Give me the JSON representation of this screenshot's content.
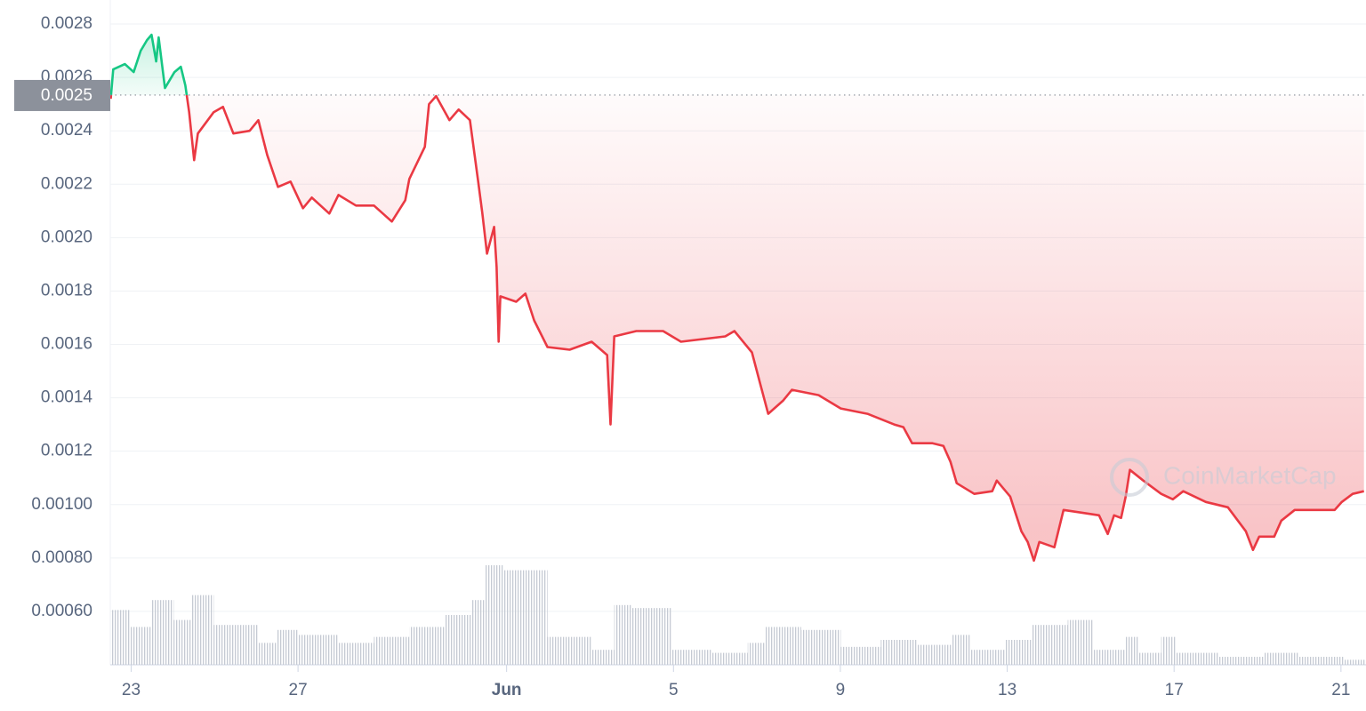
{
  "chart_data": {
    "type": "line",
    "watermark": "CoinMarketCap",
    "xlim": [
      -0.5,
      29.6
    ],
    "xticks": [
      {
        "value": 0,
        "label": "23"
      },
      {
        "value": 4,
        "label": "27"
      },
      {
        "value": 9,
        "label": "Jun"
      },
      {
        "value": 13,
        "label": "5"
      },
      {
        "value": 17,
        "label": "9"
      },
      {
        "value": 21,
        "label": "13"
      },
      {
        "value": 25,
        "label": "17"
      },
      {
        "value": 29,
        "label": "21"
      }
    ],
    "ylim": [
      0.0004,
      0.00289
    ],
    "yticks": [
      {
        "value": 0.0006,
        "label": "0.00060"
      },
      {
        "value": 0.0008,
        "label": "0.00080"
      },
      {
        "value": 0.001,
        "label": "0.00100"
      },
      0.0012,
      0.0014,
      0.0016,
      0.0018,
      {
        "value": 0.002,
        "label": "0.0020"
      },
      0.0022,
      0.0024,
      0.0026,
      0.0028
    ],
    "grid": true,
    "reference": {
      "value": 0.002534,
      "label": "0.0025"
    },
    "colors": {
      "above": "#16c784",
      "below": "#ea3943"
    },
    "x": [
      -0.49,
      -0.43,
      -0.15,
      0.06,
      0.23,
      0.38,
      0.49,
      0.6,
      0.66,
      0.81,
      1.04,
      1.19,
      1.3,
      1.39,
      1.51,
      1.6,
      1.98,
      2.2,
      2.45,
      2.84,
      3.05,
      3.26,
      3.52,
      3.82,
      4.12,
      4.33,
      4.75,
      4.97,
      5.39,
      5.82,
      6.25,
      6.57,
      6.67,
      7.04,
      7.14,
      7.31,
      7.63,
      7.85,
      8.12,
      8.32,
      8.42,
      8.53,
      8.7,
      8.76,
      8.81,
      8.85,
      9.23,
      9.45,
      9.66,
      9.98,
      10.51,
      11.04,
      11.41,
      11.49,
      11.58,
      12.11,
      12.75,
      13.18,
      13.71,
      14.24,
      14.46,
      14.88,
      15.1,
      15.27,
      15.63,
      15.84,
      16.48,
      17.01,
      17.65,
      18.29,
      18.51,
      18.72,
      19.21,
      19.47,
      19.64,
      19.79,
      20.21,
      20.64,
      20.75,
      21.07,
      21.34,
      21.49,
      21.64,
      21.77,
      22.13,
      22.35,
      22.78,
      23.2,
      23.41,
      23.56,
      23.73,
      23.84,
      23.94,
      24.26,
      24.69,
      24.97,
      25.22,
      25.76,
      26.29,
      26.72,
      26.89,
      27.04,
      27.4,
      27.57,
      27.89,
      28.38,
      28.85,
      29.02,
      29.28,
      29.55
    ],
    "values": [
      0.00252,
      0.00263,
      0.00265,
      0.00262,
      0.0027,
      0.00274,
      0.00276,
      0.00266,
      0.00275,
      0.00256,
      0.00262,
      0.00264,
      0.00257,
      0.00247,
      0.00229,
      0.00239,
      0.00247,
      0.00249,
      0.00239,
      0.0024,
      0.00244,
      0.00231,
      0.00219,
      0.00221,
      0.00211,
      0.00215,
      0.00209,
      0.00216,
      0.00212,
      0.00212,
      0.00206,
      0.00214,
      0.00222,
      0.00234,
      0.0025,
      0.00253,
      0.00244,
      0.00248,
      0.00244,
      0.00221,
      0.00209,
      0.00194,
      0.00204,
      0.00189,
      0.00161,
      0.00178,
      0.00176,
      0.00179,
      0.00169,
      0.00159,
      0.00158,
      0.00161,
      0.00156,
      0.0013,
      0.00163,
      0.00165,
      0.00165,
      0.00161,
      0.00162,
      0.00163,
      0.00165,
      0.00157,
      0.00144,
      0.00134,
      0.00139,
      0.00143,
      0.00141,
      0.00136,
      0.00134,
      0.0013,
      0.00129,
      0.00123,
      0.00123,
      0.00122,
      0.00116,
      0.00108,
      0.00104,
      0.00105,
      0.00109,
      0.00103,
      0.0009,
      0.00086,
      0.00079,
      0.00086,
      0.00084,
      0.00098,
      0.00097,
      0.00096,
      0.00089,
      0.00096,
      0.00095,
      0.00103,
      0.00113,
      0.00109,
      0.00104,
      0.00102,
      0.00105,
      0.00101,
      0.00099,
      0.0009,
      0.00083,
      0.00088,
      0.00088,
      0.00094,
      0.00098,
      0.00098,
      0.00098,
      0.00101,
      0.00104,
      0.00105
    ],
    "volume": {
      "bins": [
        -0.49,
        -0.04,
        0.49,
        1.02,
        1.45,
        1.98,
        3.05,
        3.48,
        4.01,
        4.97,
        5.82,
        6.67,
        7.53,
        8.17,
        8.49,
        8.91,
        9.98,
        11.04,
        11.58,
        12.0,
        12.96,
        13.92,
        14.78,
        15.2,
        16.06,
        17.01,
        17.97,
        18.83,
        19.68,
        20.11,
        20.96,
        21.6,
        22.45,
        23.05,
        23.84,
        24.16,
        24.69,
        25.05,
        26.08,
        27.14,
        28.0,
        29.07,
        29.62
      ],
      "values": [
        55,
        38,
        65,
        45,
        70,
        40,
        22,
        35,
        30,
        22,
        28,
        38,
        50,
        65,
        100,
        95,
        28,
        15,
        60,
        57,
        15,
        12,
        22,
        38,
        35,
        18,
        25,
        20,
        30,
        15,
        25,
        40,
        45,
        15,
        28,
        12,
        28,
        12,
        8,
        12,
        8,
        5
      ],
      "color": "#c5cad3"
    }
  }
}
